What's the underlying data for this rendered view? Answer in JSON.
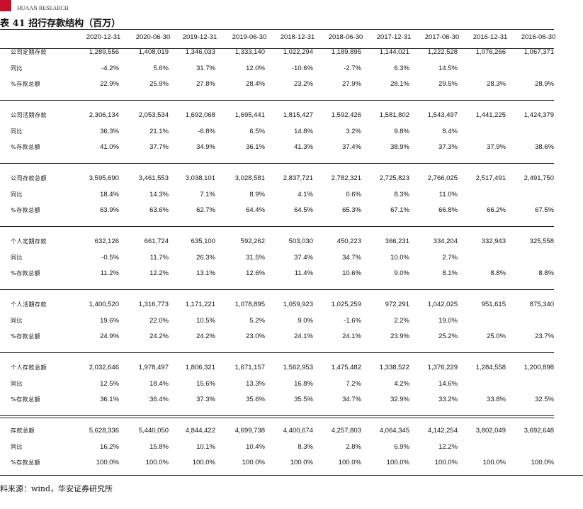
{
  "header": {
    "logo_subtitle": "HUAAN RESEARCH",
    "title": "表 41 招行存款结构（百万）"
  },
  "table": {
    "columns": [
      "2020-12-31",
      "2020-06-30",
      "2019-12-31",
      "2019-06-30",
      "2018-12-31",
      "2018-06-30",
      "2017-12-31",
      "2017-06-30",
      "2016-12-31",
      "2016-06-30"
    ],
    "groups": [
      {
        "rows": [
          {
            "label": "公司定期存款",
            "values": [
              "1,289,556",
              "1,408,019",
              "1,346,033",
              "1,333,140",
              "1,022,294",
              "1,189,895",
              "1,144,021",
              "1,222,528",
              "1,076,266",
              "1,067,371"
            ]
          },
          {
            "label": "同比",
            "values": [
              "-4.2%",
              "5.6%",
              "31.7%",
              "12.0%",
              "-10.6%",
              "-2.7%",
              "6.3%",
              "14.5%",
              null,
              null
            ]
          },
          {
            "label": "%存款总额",
            "values": [
              "22.9%",
              "25.9%",
              "27.8%",
              "28.4%",
              "23.2%",
              "27.9%",
              "28.1%",
              "29.5%",
              "28.3%",
              "28.9%"
            ]
          }
        ]
      },
      {
        "rows": [
          {
            "label": "公司活期存款",
            "values": [
              "2,306,134",
              "2,053,534",
              "1,692,068",
              "1,695,441",
              "1,815,427",
              "1,592,426",
              "1,581,802",
              "1,543,497",
              "1,441,225",
              "1,424,379"
            ]
          },
          {
            "label": "同比",
            "values": [
              "36.3%",
              "21.1%",
              "-6.8%",
              "6.5%",
              "14.8%",
              "3.2%",
              "9.8%",
              "8.4%",
              null,
              null
            ]
          },
          {
            "label": "%存款总额",
            "values": [
              "41.0%",
              "37.7%",
              "34.9%",
              "36.1%",
              "41.3%",
              "37.4%",
              "38.9%",
              "37.3%",
              "37.9%",
              "38.6%"
            ]
          }
        ]
      },
      {
        "rows": [
          {
            "label": "公司存款总额",
            "values": [
              "3,595,690",
              "3,461,553",
              "3,038,101",
              "3,028,581",
              "2,837,721",
              "2,782,321",
              "2,725,823",
              "2,766,025",
              "2,517,491",
              "2,491,750"
            ]
          },
          {
            "label": "同比",
            "values": [
              "18.4%",
              "14.3%",
              "7.1%",
              "8.9%",
              "4.1%",
              "0.6%",
              "8.3%",
              "11.0%",
              null,
              null
            ]
          },
          {
            "label": "%存款总额",
            "values": [
              "63.9%",
              "63.6%",
              "62.7%",
              "64.4%",
              "64.5%",
              "65.3%",
              "67.1%",
              "66.8%",
              "66.2%",
              "67.5%"
            ]
          }
        ]
      },
      {
        "rows": [
          {
            "label": "个人定期存款",
            "values": [
              "632,126",
              "661,724",
              "635,100",
              "592,262",
              "503,030",
              "450,223",
              "366,231",
              "334,204",
              "332,943",
              "325,558"
            ]
          },
          {
            "label": "同比",
            "values": [
              "-0.5%",
              "11.7%",
              "26.3%",
              "31.5%",
              "37.4%",
              "34.7%",
              "10.0%",
              "2.7%",
              null,
              null
            ]
          },
          {
            "label": "%存款总额",
            "values": [
              "11.2%",
              "12.2%",
              "13.1%",
              "12.6%",
              "11.4%",
              "10.6%",
              "9.0%",
              "8.1%",
              "8.8%",
              "8.8%"
            ]
          }
        ]
      },
      {
        "rows": [
          {
            "label": "个人活期存款",
            "values": [
              "1,400,520",
              "1,316,773",
              "1,171,221",
              "1,078,895",
              "1,059,923",
              "1,025,259",
              "972,291",
              "1,042,025",
              "951,615",
              "875,340"
            ]
          },
          {
            "label": "同比",
            "values": [
              "19.6%",
              "22.0%",
              "10.5%",
              "5.2%",
              "9.0%",
              "-1.6%",
              "2.2%",
              "19.0%",
              null,
              null
            ]
          },
          {
            "label": "%存款总额",
            "values": [
              "24.9%",
              "24.2%",
              "24.2%",
              "23.0%",
              "24.1%",
              "24.1%",
              "23.9%",
              "25.2%",
              "25.0%",
              "23.7%"
            ]
          }
        ]
      },
      {
        "rows": [
          {
            "label": "个人存款总额",
            "values": [
              "2,032,646",
              "1,978,497",
              "1,806,321",
              "1,671,157",
              "1,562,953",
              "1,475,482",
              "1,338,522",
              "1,376,229",
              "1,284,558",
              "1,200,898"
            ]
          },
          {
            "label": "同比",
            "values": [
              "12.5%",
              "18.4%",
              "15.6%",
              "13.3%",
              "16.8%",
              "7.2%",
              "4.2%",
              "14.6%",
              null,
              null
            ]
          },
          {
            "label": "%存款总额",
            "values": [
              "36.1%",
              "36.4%",
              "37.3%",
              "35.6%",
              "35.5%",
              "34.7%",
              "32.9%",
              "33.2%",
              "33.8%",
              "32.5%"
            ]
          }
        ]
      },
      {
        "rows": [
          {
            "label": "存款总额",
            "values": [
              "5,628,336",
              "5,440,050",
              "4,844,422",
              "4,699,738",
              "4,400,674",
              "4,257,803",
              "4,064,345",
              "4,142,254",
              "3,802,049",
              "3,692,648"
            ]
          },
          {
            "label": "同比",
            "values": [
              "16.2%",
              "15.8%",
              "10.1%",
              "10.4%",
              "8.3%",
              "2.8%",
              "6.9%",
              "12.2%",
              null,
              null
            ]
          },
          {
            "label": "%存款总额",
            "values": [
              "100.0%",
              "100.0%",
              "100.0%",
              "100.0%",
              "100.0%",
              "100.0%",
              "100.0%",
              "100.0%",
              "100.0%",
              "100.0%"
            ]
          }
        ]
      }
    ]
  },
  "footer": {
    "source": "料来源：wind，华安证券研究所"
  }
}
